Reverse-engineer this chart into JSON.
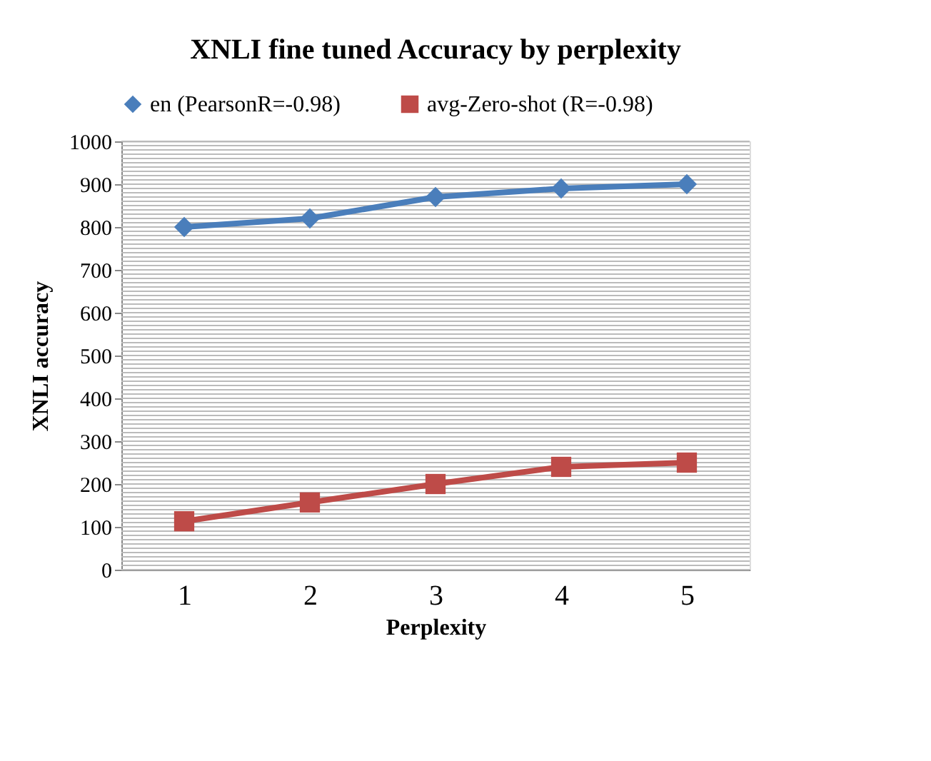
{
  "chart_data": {
    "type": "line",
    "title": "XNLI fine tuned Accuracy by perplexity",
    "xlabel": "Perplexity",
    "ylabel": "XNLI accuracy",
    "categories": [
      "1",
      "2",
      "3",
      "4",
      "5"
    ],
    "series": [
      {
        "name": "en (PearsonR=-0.98)",
        "color": "#4a7ebb",
        "marker": "diamond",
        "values": [
          800,
          820,
          870,
          890,
          900
        ]
      },
      {
        "name": "avg-Zero-shot (R=-0.98)",
        "color": "#be4b48",
        "marker": "square",
        "values": [
          113,
          157,
          200,
          240,
          250
        ]
      }
    ],
    "ylim": [
      0,
      1000
    ],
    "yticks": [
      0,
      100,
      200,
      300,
      400,
      500,
      600,
      700,
      800,
      900,
      1000
    ],
    "grid": "y",
    "legend": "top",
    "line_style": "solid"
  }
}
